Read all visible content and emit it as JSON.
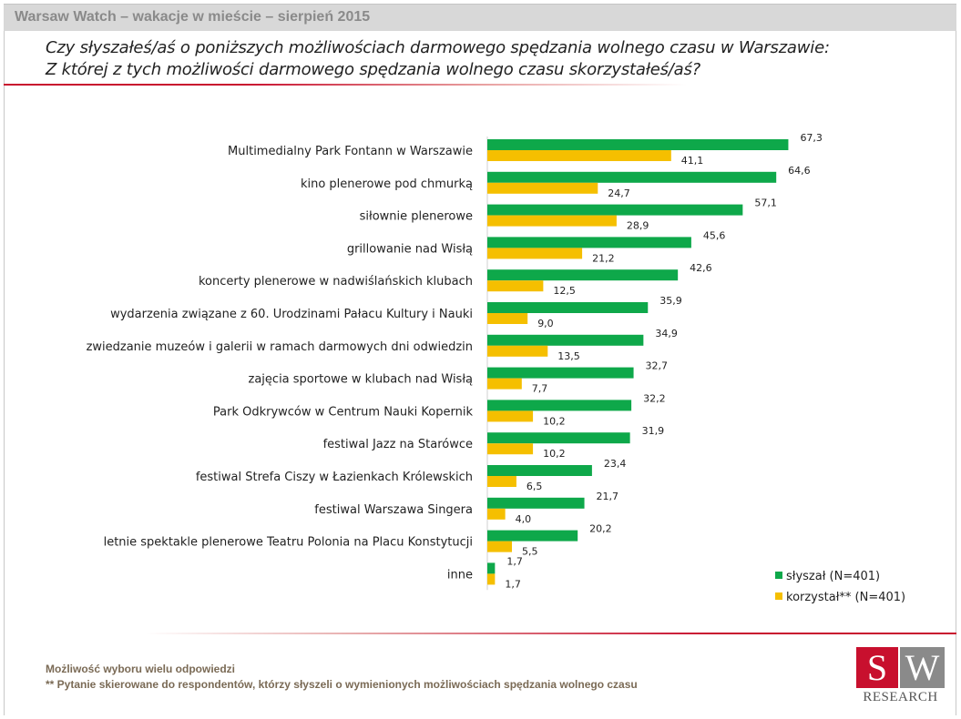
{
  "header": {
    "title": "Warsaw Watch – wakacje w mieście – sierpień 2015"
  },
  "question": {
    "line1": "Czy słyszałeś/aś o poniższych możliwościach darmowego spędzania wolnego czasu w Warszawie:",
    "line2": "Z której z tych możliwości darmowego spędzania wolnego czasu skorzystałeś/aś?"
  },
  "colors": {
    "heard": "#0ea84a",
    "used": "#f5bf00",
    "accent": "#c8102e"
  },
  "chart_data": {
    "type": "bar",
    "orientation": "horizontal",
    "categories": [
      "Multimedialny Park Fontann w Warszawie",
      "kino plenerowe pod chmurką",
      "siłownie plenerowe",
      "grillowanie nad Wisłą",
      "koncerty plenerowe w nadwiślańskich klubach",
      "wydarzenia związane z 60. Urodzinami Pałacu Kultury i Nauki",
      "zwiedzanie muzeów i galerii w ramach darmowych dni odwiedzin",
      "zajęcia sportowe w klubach nad Wisłą",
      "Park Odkrywców w Centrum Nauki Kopernik",
      "festiwal Jazz na Starówce",
      "festiwal Strefa Ciszy w Łazienkach Królewskich",
      "festiwal Warszawa Singera",
      "letnie spektakle plenerowe Teatru Polonia na Placu Konstytucji",
      "inne"
    ],
    "series": [
      {
        "name": "słyszał (N=401)",
        "values": [
          67.3,
          64.6,
          57.1,
          45.6,
          42.6,
          35.9,
          34.9,
          32.7,
          32.2,
          31.9,
          23.4,
          21.7,
          20.2,
          1.7
        ],
        "labels": [
          "67,3",
          "64,6",
          "57,1",
          "45,6",
          "42,6",
          "35,9",
          "34,9",
          "32,7",
          "32,2",
          "31,9",
          "23,4",
          "21,7",
          "20,2",
          "1,7"
        ]
      },
      {
        "name": "korzystał** (N=401)",
        "values": [
          41.1,
          24.7,
          28.9,
          21.2,
          12.5,
          9.0,
          13.5,
          7.7,
          10.2,
          10.2,
          6.5,
          4.0,
          5.5,
          1.7
        ],
        "labels": [
          "41,1",
          "24,7",
          "28,9",
          "21,2",
          "12,5",
          "9,0",
          "13,5",
          "7,7",
          "10,2",
          "10,2",
          "6,5",
          "4,0",
          "5,5",
          "1,7"
        ]
      }
    ],
    "xlim": [
      0,
      100
    ],
    "legend_position": "bottom-right"
  },
  "footnotes": {
    "line1": "Możliwość wyboru wielu odpowiedzi",
    "line2": "** Pytanie skierowane do respondentów, którzy słyszeli o wymienionych możliwościach spędzania wolnego czasu"
  },
  "logo": {
    "s": "S",
    "w": "W",
    "text": "RESEARCH"
  }
}
